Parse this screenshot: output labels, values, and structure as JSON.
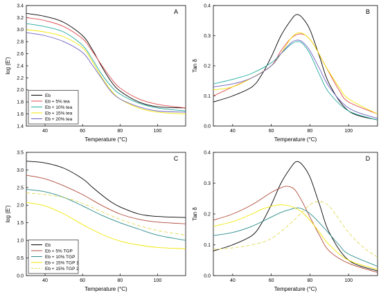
{
  "chart_data": [
    {
      "panel": "A",
      "type": "line",
      "xlabel": "Temperature (°C)",
      "ylabel": "log (E')",
      "xlim": [
        30,
        115
      ],
      "ylim": [
        1.4,
        3.4
      ],
      "xticks": [
        40,
        60,
        80,
        100
      ],
      "yticks": [
        1.4,
        1.6,
        1.8,
        2.0,
        2.2,
        2.4,
        2.6,
        2.8,
        3.0,
        3.2,
        3.4
      ],
      "ytick_decimals": 1,
      "legend": "bottom-left",
      "series": [
        {
          "name": "Eb",
          "color": "#000000",
          "dash": "",
          "x": [
            30,
            40,
            50,
            60,
            65,
            70,
            75,
            80,
            90,
            100,
            115
          ],
          "y": [
            3.27,
            3.22,
            3.12,
            2.9,
            2.68,
            2.4,
            2.15,
            1.98,
            1.8,
            1.72,
            1.7
          ]
        },
        {
          "name": "Eb + 5% tea",
          "color": "#e04a4a",
          "dash": "",
          "x": [
            30,
            40,
            50,
            60,
            65,
            70,
            75,
            80,
            90,
            100,
            115
          ],
          "y": [
            3.2,
            3.15,
            3.05,
            2.85,
            2.65,
            2.42,
            2.2,
            2.03,
            1.85,
            1.76,
            1.7
          ]
        },
        {
          "name": "Eb + 10% tea",
          "color": "#1faa9b",
          "dash": "",
          "x": [
            30,
            40,
            50,
            60,
            65,
            70,
            75,
            80,
            90,
            100,
            115
          ],
          "y": [
            3.1,
            3.05,
            2.96,
            2.74,
            2.52,
            2.27,
            2.07,
            1.93,
            1.78,
            1.7,
            1.65
          ]
        },
        {
          "name": "Eb + 15% tea",
          "color": "#f2e600",
          "dash": "",
          "x": [
            30,
            40,
            50,
            60,
            65,
            70,
            75,
            80,
            90,
            100,
            115
          ],
          "y": [
            3.0,
            2.96,
            2.88,
            2.7,
            2.48,
            2.22,
            2.0,
            1.85,
            1.7,
            1.63,
            1.6
          ]
        },
        {
          "name": "Eb + 20% tea",
          "color": "#6d5fc2",
          "dash": "",
          "x": [
            30,
            40,
            50,
            60,
            65,
            70,
            75,
            80,
            90,
            100,
            115
          ],
          "y": [
            2.95,
            2.9,
            2.8,
            2.62,
            2.42,
            2.2,
            1.98,
            1.85,
            1.72,
            1.65,
            1.63
          ]
        }
      ]
    },
    {
      "panel": "B",
      "type": "line",
      "xlabel": "Temperature (°C)",
      "ylabel": "Tan δ",
      "xlim": [
        30,
        115
      ],
      "ylim": [
        0.0,
        0.4
      ],
      "xticks": [
        40,
        60,
        80,
        100
      ],
      "yticks": [
        0.0,
        0.1,
        0.2,
        0.3,
        0.4
      ],
      "ytick_decimals": 1,
      "series": [
        {
          "name": "Eb",
          "color": "#000000",
          "dash": "",
          "x": [
            30,
            40,
            50,
            55,
            60,
            65,
            70,
            73,
            76,
            80,
            85,
            90,
            100,
            115
          ],
          "y": [
            0.08,
            0.1,
            0.13,
            0.17,
            0.23,
            0.3,
            0.35,
            0.37,
            0.36,
            0.32,
            0.23,
            0.14,
            0.05,
            0.02
          ]
        },
        {
          "name": "Eb + 5% tea",
          "color": "#e04a4a",
          "dash": "",
          "x": [
            30,
            40,
            50,
            60,
            65,
            70,
            74,
            78,
            82,
            88,
            95,
            100,
            115
          ],
          "y": [
            0.1,
            0.13,
            0.16,
            0.2,
            0.25,
            0.29,
            0.305,
            0.3,
            0.27,
            0.2,
            0.12,
            0.08,
            0.04
          ]
        },
        {
          "name": "Eb + 10% tea",
          "color": "#1faa9b",
          "dash": "",
          "x": [
            30,
            40,
            50,
            60,
            65,
            70,
            73,
            76,
            80,
            85,
            90,
            100,
            115
          ],
          "y": [
            0.14,
            0.155,
            0.175,
            0.21,
            0.24,
            0.27,
            0.28,
            0.275,
            0.24,
            0.17,
            0.11,
            0.05,
            0.02
          ]
        },
        {
          "name": "Eb + 15% tea",
          "color": "#f2e600",
          "dash": "",
          "x": [
            30,
            40,
            50,
            60,
            65,
            70,
            74,
            78,
            82,
            88,
            95,
            100,
            115
          ],
          "y": [
            0.12,
            0.13,
            0.16,
            0.2,
            0.24,
            0.29,
            0.31,
            0.3,
            0.27,
            0.2,
            0.13,
            0.09,
            0.04
          ]
        },
        {
          "name": "Eb + 20% tea",
          "color": "#6d5fc2",
          "dash": "",
          "x": [
            30,
            40,
            50,
            60,
            65,
            70,
            73,
            76,
            80,
            85,
            90,
            100,
            115
          ],
          "y": [
            0.13,
            0.14,
            0.16,
            0.2,
            0.24,
            0.275,
            0.285,
            0.28,
            0.25,
            0.19,
            0.13,
            0.06,
            0.025
          ]
        }
      ]
    },
    {
      "panel": "C",
      "type": "line",
      "xlabel": "Temperature (°C)",
      "ylabel": "log (E')",
      "xlim": [
        30,
        115
      ],
      "ylim": [
        0.0,
        3.5
      ],
      "xticks": [
        40,
        60,
        80,
        100
      ],
      "yticks": [
        0.0,
        0.5,
        1.0,
        1.5,
        2.0,
        2.5,
        3.0,
        3.5
      ],
      "ytick_decimals": 1,
      "legend": "bottom-left",
      "series": [
        {
          "name": "Eb",
          "color": "#000000",
          "dash": "",
          "x": [
            30,
            40,
            50,
            60,
            65,
            70,
            75,
            80,
            90,
            100,
            115
          ],
          "y": [
            3.25,
            3.2,
            3.05,
            2.75,
            2.52,
            2.3,
            2.1,
            1.95,
            1.75,
            1.68,
            1.65
          ]
        },
        {
          "name": "Eb + 5% TGP",
          "color": "#b04a3a",
          "dash": "",
          "x": [
            30,
            40,
            50,
            60,
            70,
            80,
            90,
            100,
            115
          ],
          "y": [
            2.85,
            2.75,
            2.55,
            2.3,
            2.0,
            1.75,
            1.6,
            1.52,
            1.47
          ]
        },
        {
          "name": "Eb + 10% TGP",
          "color": "#2a8a8a",
          "dash": "",
          "x": [
            30,
            40,
            50,
            60,
            70,
            80,
            90,
            100,
            115
          ],
          "y": [
            2.45,
            2.38,
            2.22,
            1.98,
            1.72,
            1.5,
            1.32,
            1.15,
            1.0
          ]
        },
        {
          "name": "Eb + 15% TGP 1",
          "color": "#f2e600",
          "dash": "",
          "x": [
            30,
            40,
            50,
            60,
            70,
            80,
            90,
            100,
            115
          ],
          "y": [
            2.08,
            1.98,
            1.75,
            1.45,
            1.18,
            0.98,
            0.87,
            0.8,
            0.76
          ]
        },
        {
          "name": "Eb + 15% TGP 2",
          "color": "#e0da50",
          "dash": "5,3",
          "x": [
            30,
            40,
            50,
            60,
            70,
            80,
            90,
            100,
            115
          ],
          "y": [
            2.35,
            2.3,
            2.22,
            2.05,
            1.82,
            1.6,
            1.42,
            1.28,
            1.15
          ]
        }
      ]
    },
    {
      "panel": "D",
      "type": "line",
      "xlabel": "Temperature (°C)",
      "ylabel": "Tan δ",
      "xlim": [
        30,
        115
      ],
      "ylim": [
        0.0,
        0.4
      ],
      "xticks": [
        40,
        60,
        80,
        100
      ],
      "yticks": [
        0.0,
        0.1,
        0.2,
        0.3,
        0.4
      ],
      "ytick_decimals": 1,
      "series": [
        {
          "name": "Eb",
          "color": "#000000",
          "dash": "",
          "x": [
            30,
            40,
            50,
            55,
            60,
            65,
            70,
            73,
            76,
            80,
            85,
            90,
            100,
            115
          ],
          "y": [
            0.08,
            0.1,
            0.13,
            0.17,
            0.23,
            0.3,
            0.35,
            0.37,
            0.36,
            0.32,
            0.23,
            0.14,
            0.05,
            0.015
          ]
        },
        {
          "name": "Eb + 5% TGP",
          "color": "#b04a3a",
          "dash": "",
          "x": [
            30,
            40,
            50,
            60,
            65,
            68,
            72,
            76,
            80,
            85,
            90,
            100,
            115
          ],
          "y": [
            0.18,
            0.2,
            0.23,
            0.27,
            0.285,
            0.29,
            0.28,
            0.24,
            0.19,
            0.13,
            0.08,
            0.04,
            0.01
          ]
        },
        {
          "name": "Eb + 10% TGP",
          "color": "#2a8a8a",
          "dash": "",
          "x": [
            30,
            40,
            50,
            60,
            65,
            70,
            74,
            78,
            82,
            88,
            95,
            100,
            115
          ],
          "y": [
            0.13,
            0.14,
            0.16,
            0.19,
            0.205,
            0.215,
            0.22,
            0.21,
            0.19,
            0.15,
            0.1,
            0.07,
            0.03
          ]
        },
        {
          "name": "Eb + 15% TGP 1",
          "color": "#f2e600",
          "dash": "",
          "x": [
            30,
            40,
            50,
            55,
            60,
            65,
            70,
            75,
            80,
            85,
            90,
            100,
            115
          ],
          "y": [
            0.16,
            0.175,
            0.2,
            0.215,
            0.225,
            0.23,
            0.225,
            0.21,
            0.18,
            0.14,
            0.1,
            0.05,
            0.02
          ]
        },
        {
          "name": "Eb + 15% TGP 2",
          "color": "#e0da50",
          "dash": "5,3",
          "x": [
            30,
            40,
            50,
            60,
            70,
            75,
            80,
            84,
            88,
            92,
            100,
            108,
            115
          ],
          "y": [
            0.085,
            0.09,
            0.1,
            0.12,
            0.17,
            0.2,
            0.23,
            0.24,
            0.235,
            0.21,
            0.14,
            0.09,
            0.06
          ]
        }
      ]
    }
  ]
}
